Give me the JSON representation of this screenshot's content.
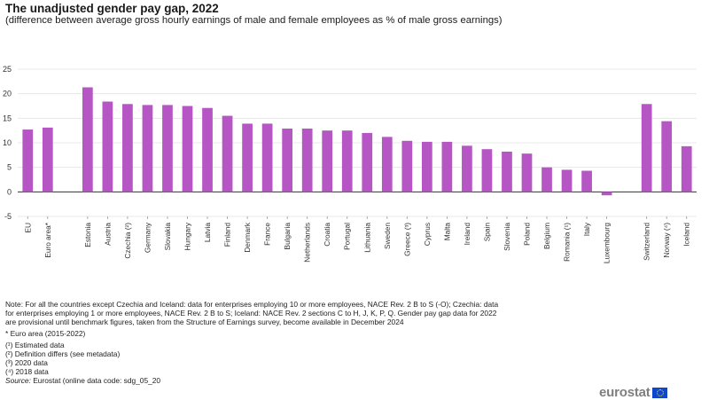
{
  "chart_data": {
    "type": "bar",
    "title": "The unadjusted gender pay gap, 2022",
    "subtitle": "(difference between average gross hourly earnings of male and female employees as % of male gross earnings)",
    "xlabel": "",
    "ylabel": "",
    "ylim": [
      -5,
      25
    ],
    "yticks": [
      -5,
      0,
      5,
      10,
      15,
      20,
      25
    ],
    "grid": true,
    "bar_color": "#b655c4",
    "groups": [
      {
        "categories": [
          "EU",
          "Euro area*"
        ],
        "values": [
          12.7,
          13.1
        ]
      },
      {
        "categories": [
          "Estonia",
          "Austria",
          "Czechia (²)",
          "Germany",
          "Slovakia",
          "Hungary",
          "Latvia",
          "Finland",
          "Denmark",
          "France",
          "Bulgaria",
          "Netherlands",
          "Croatia",
          "Portugal",
          "Lithuania",
          "Sweden",
          "Greece (³)",
          "Cyprus",
          "Malta",
          "Ireland",
          "Spain",
          "Slovenia",
          "Poland",
          "Belgium",
          "Romania (¹)",
          "Italy",
          "Luxembourg"
        ],
        "values": [
          21.3,
          18.4,
          17.9,
          17.7,
          17.7,
          17.5,
          17.1,
          15.5,
          13.9,
          13.9,
          12.9,
          12.9,
          12.5,
          12.5,
          12.0,
          11.2,
          10.4,
          10.2,
          10.2,
          9.4,
          8.7,
          8.2,
          7.8,
          5.0,
          4.5,
          4.3,
          -0.7
        ]
      },
      {
        "categories": [
          "Switzerland",
          "Norway (⁴)",
          "Iceland"
        ],
        "values": [
          17.9,
          14.4,
          9.3
        ]
      }
    ]
  },
  "notes": {
    "main": "Note: For all the countries except Czechia and Iceland: data for enterprises employing 10 or more employees, NACE Rev. 2 B to S (-O); Czechia: data for enterprises employing 1 or more employees, NACE Rev. 2 B to S; Iceland: NACE Rev. 2 sections C to H, J, K, P, Q. Gender pay gap data for 2022 are provisional until benchmark figures, taken from the Structure of Earnings survey, become available in December 2024",
    "euro_area": "* Euro area (2015-2022)",
    "footnotes": [
      "(¹) Estimated data",
      "(²) Definition differs (see metadata)",
      "(³) 2020 data",
      "(⁴) 2018 data"
    ],
    "source_label": "Source:",
    "source_text": "Eurostat (online data code: sdg_05_20"
  },
  "logo": {
    "text": "eurostat",
    "icon": "eu-flag-icon"
  }
}
